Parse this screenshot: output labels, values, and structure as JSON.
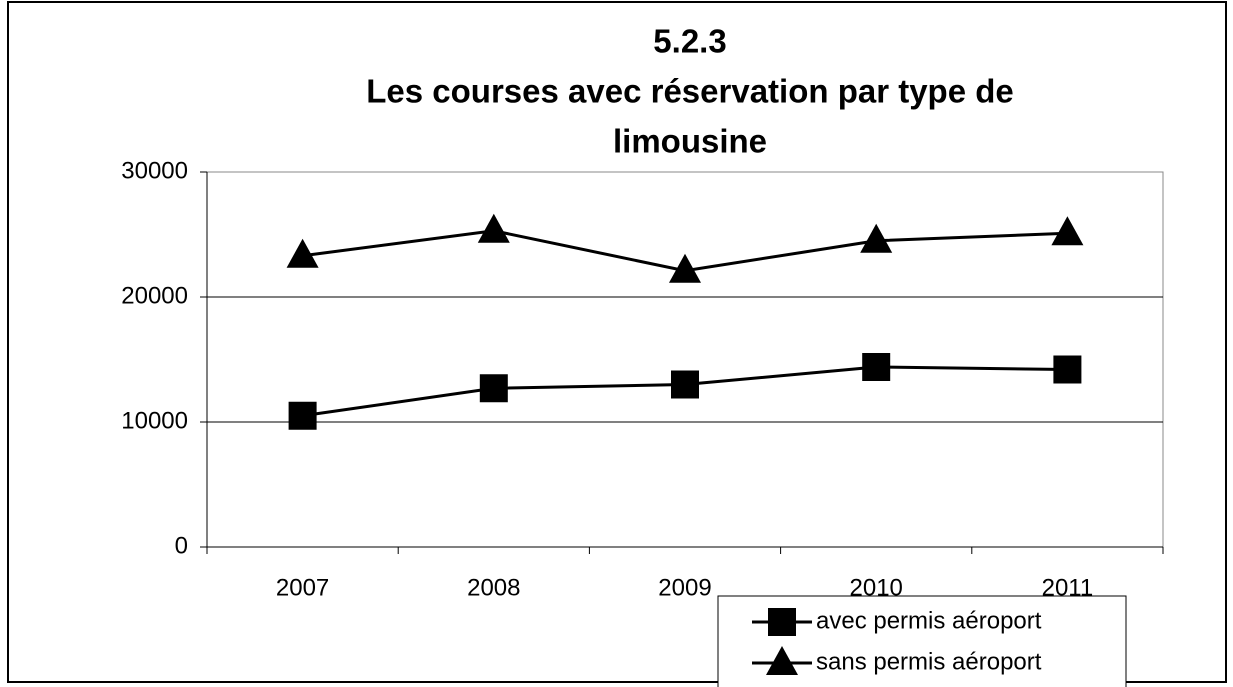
{
  "chart_data": {
    "type": "line",
    "title": [
      "5.2.3",
      "Les courses avec réservation par type de",
      "limousine"
    ],
    "categories": [
      "2007",
      "2008",
      "2009",
      "2010",
      "2011"
    ],
    "series": [
      {
        "name": "avec permis aéroport",
        "color": "#000000",
        "marker": "square",
        "values": [
          10500,
          12700,
          13000,
          14400,
          14200
        ]
      },
      {
        "name": "sans permis aéroport",
        "color": "#000000",
        "marker": "triangle",
        "values": [
          23300,
          25300,
          22100,
          24500,
          25100
        ]
      }
    ],
    "ylim": [
      0,
      30000
    ],
    "yticks": [
      0,
      10000,
      20000,
      30000
    ],
    "grid": true,
    "legend": "bottom-right"
  }
}
